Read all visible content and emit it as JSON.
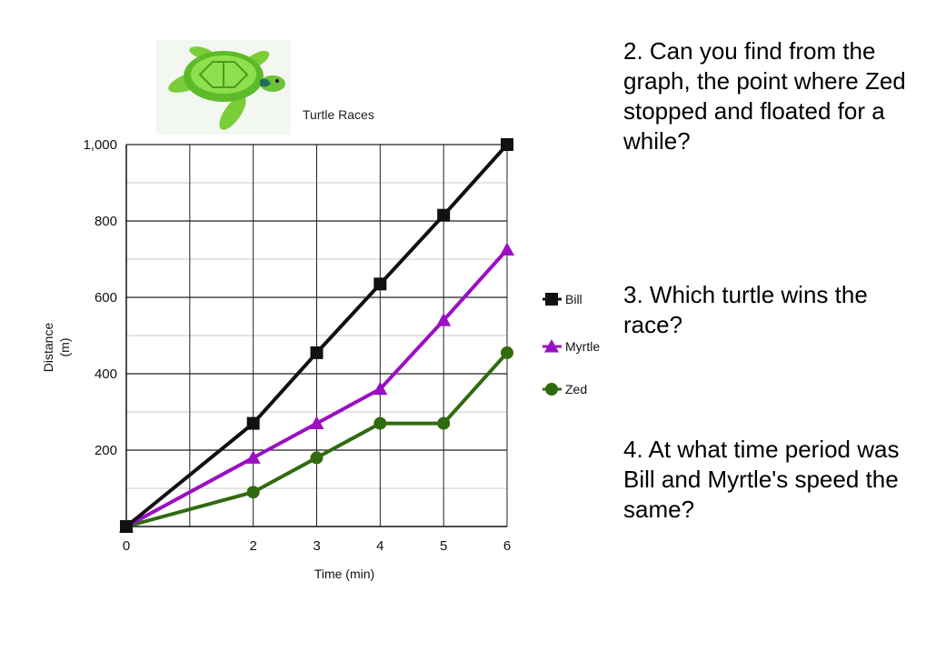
{
  "chart_data": {
    "type": "line",
    "title": "Turtle Races",
    "xlabel": "Time (min)",
    "ylabel": "Distance (m)",
    "x_ticks": [
      "0",
      "2",
      "3",
      "4",
      "5",
      "6"
    ],
    "y_ticks": [
      "200",
      "400",
      "600",
      "800",
      "1,000"
    ],
    "ylim": [
      0,
      1000
    ],
    "grid": true,
    "legend_position": "right",
    "series": [
      {
        "name": "Bill",
        "color": "#111111",
        "marker": "square",
        "x": [
          0,
          2,
          3,
          4,
          5,
          6
        ],
        "values": [
          0,
          270,
          455,
          635,
          815,
          1000
        ]
      },
      {
        "name": "Myrtle",
        "color": "#9b0fc4",
        "marker": "triangle",
        "x": [
          0,
          2,
          3,
          4,
          5,
          6
        ],
        "values": [
          0,
          180,
          270,
          360,
          540,
          725
        ]
      },
      {
        "name": "Zed",
        "color": "#2f6b0f",
        "marker": "circle",
        "x": [
          0,
          2,
          3,
          4,
          5,
          6
        ],
        "values": [
          0,
          90,
          180,
          270,
          270,
          455
        ]
      }
    ]
  },
  "questions": [
    {
      "text": "2.  Can you find from the graph, the point where Zed stopped and floated for a while?"
    },
    {
      "text": "3.  Which turtle wins the race?"
    },
    {
      "text": "4.  At what time period was Bill and Myrtle's speed the same?"
    }
  ],
  "image": {
    "icon": "turtle-icon"
  }
}
